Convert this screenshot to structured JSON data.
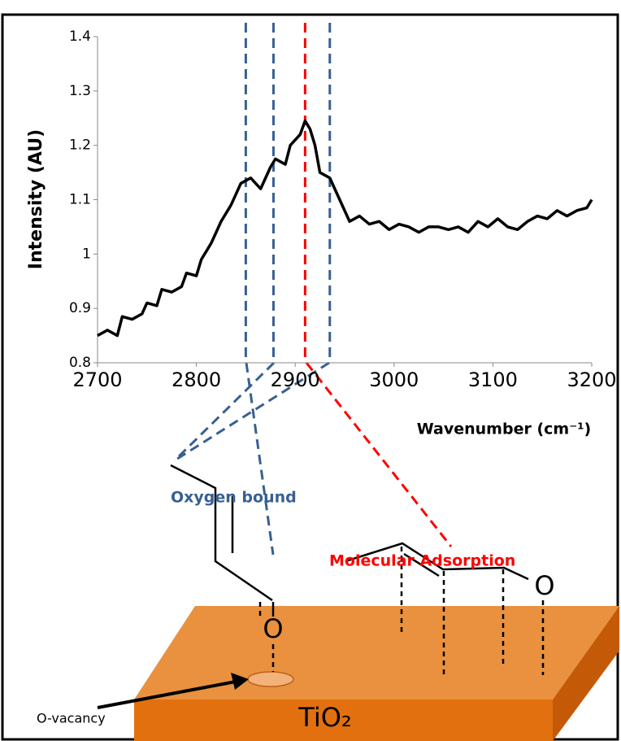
{
  "chart_data": {
    "type": "line",
    "y_label": "Intensity (AU)",
    "x_label": "Wavenumber (cm⁻¹)",
    "color": "#000000",
    "xlim": [
      2700,
      3200
    ],
    "ylim": [
      0.8,
      1.4
    ],
    "xticks": [
      2700,
      2800,
      2900,
      3000,
      3100,
      3200
    ],
    "yticks": [
      0.8,
      0.9,
      1,
      1.1,
      1.2,
      1.3,
      1.4
    ],
    "x": [
      2700,
      2710,
      2720,
      2725,
      2735,
      2745,
      2750,
      2760,
      2765,
      2775,
      2785,
      2790,
      2800,
      2805,
      2815,
      2825,
      2835,
      2845,
      2855,
      2865,
      2875,
      2880,
      2890,
      2895,
      2905,
      2910,
      2915,
      2920,
      2925,
      2935,
      2945,
      2955,
      2965,
      2975,
      2985,
      2995,
      3005,
      3015,
      3025,
      3035,
      3045,
      3055,
      3065,
      3075,
      3085,
      3095,
      3105,
      3115,
      3125,
      3135,
      3145,
      3155,
      3165,
      3175,
      3185,
      3195,
      3200
    ],
    "values": [
      0.85,
      0.86,
      0.85,
      0.885,
      0.88,
      0.89,
      0.91,
      0.905,
      0.935,
      0.93,
      0.94,
      0.965,
      0.96,
      0.99,
      1.02,
      1.06,
      1.09,
      1.13,
      1.14,
      1.12,
      1.16,
      1.175,
      1.165,
      1.2,
      1.22,
      1.245,
      1.23,
      1.2,
      1.15,
      1.14,
      1.1,
      1.06,
      1.07,
      1.055,
      1.06,
      1.045,
      1.055,
      1.05,
      1.04,
      1.05,
      1.05,
      1.045,
      1.05,
      1.04,
      1.06,
      1.05,
      1.065,
      1.05,
      1.045,
      1.06,
      1.07,
      1.065,
      1.08,
      1.07,
      1.08,
      1.085,
      1.1
    ],
    "reference_lines": [
      {
        "x": 2850,
        "color": "#376092"
      },
      {
        "x": 2878,
        "color": "#376092"
      },
      {
        "x": 2910,
        "color": "#ff0000"
      },
      {
        "x": 2935,
        "color": "#376092"
      }
    ]
  },
  "diagram": {
    "oxygen_bound": "Oxygen bound",
    "molecular_adsorption": "Molecular Adsorption",
    "oxygen_left": "O",
    "oxygen_right": "O",
    "vacancy": "O-vacancy",
    "surface": "TiO₂"
  }
}
